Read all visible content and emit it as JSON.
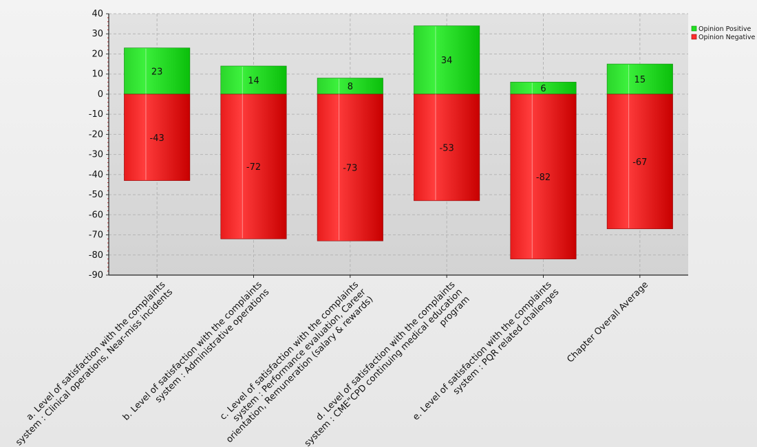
{
  "chart_data": {
    "type": "bar",
    "stacked": true,
    "categories": [
      [
        "a. Level of satisfaction with the complaints",
        "system : Clinical operations, Near-miss incidents"
      ],
      [
        "b. Level of satisfaction with the complaints",
        "system : Administrative operations"
      ],
      [
        "c. Level of satisfaction with the complaints",
        "system : Performance evaluation, Career",
        "orientation, Remuneration (salary & rewards)"
      ],
      [
        "d. Level of satisfaction with the complaints",
        "system : CME\"CPD continuing medical education",
        "program"
      ],
      [
        "e. Level of satisfaction with the complaints",
        "system : PQR related challenges"
      ],
      [
        "Chapter Overall Average"
      ]
    ],
    "series": [
      {
        "name": "Opinion Positive",
        "values": [
          23,
          14,
          8,
          34,
          6,
          15
        ]
      },
      {
        "name": "Opinion Negative",
        "values": [
          -43,
          -72,
          -73,
          -53,
          -82,
          -67
        ]
      }
    ],
    "ylim": [
      -90,
      40
    ],
    "yticks": [
      40,
      30,
      20,
      10,
      0,
      -10,
      -20,
      -30,
      -40,
      -50,
      -60,
      -70,
      -80,
      -90
    ],
    "grid": true,
    "legend_position": "top-right",
    "colors": {
      "positive": "#22e022",
      "positive_dark": "#0fb80f",
      "negative": "#ff2e2e",
      "negative_dark": "#cc0000"
    },
    "xlabel": "",
    "ylabel": "",
    "title": ""
  }
}
